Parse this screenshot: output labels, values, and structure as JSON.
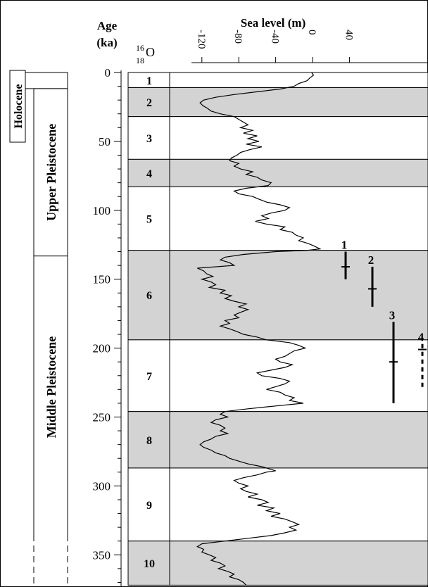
{
  "chart_data": {
    "type": "line",
    "orientation": "vertical-depth",
    "title": "Sea level (m)",
    "age_axis": {
      "label_line1": "Age",
      "label_line2": "(ka)",
      "range": [
        0,
        372
      ],
      "ticks": [
        0,
        50,
        100,
        150,
        200,
        250,
        300,
        350
      ],
      "tick_labels": [
        "0",
        "50",
        "100",
        "150",
        "200",
        "250",
        "300",
        "350"
      ]
    },
    "sea_level_axis": {
      "range": [
        -130,
        40
      ],
      "ticks": [
        -120,
        -80,
        -40,
        0,
        40
      ],
      "tick_labels": [
        "-120",
        "-80",
        "-40",
        "0",
        "40"
      ]
    },
    "oxygen_ratio_label": {
      "top_mass": "16",
      "bottom_mass": "18",
      "element": "O"
    },
    "epochs": [
      {
        "name": "Holocene",
        "from": 0,
        "to": 11.7
      },
      {
        "name": "Upper Pleistocene",
        "from": 11.7,
        "to": 126
      },
      {
        "name": "Middle Pleistocene",
        "from": 126,
        "to": 372
      }
    ],
    "stages": [
      {
        "label": "1",
        "from": 0,
        "to": 11,
        "shaded": false
      },
      {
        "label": "2",
        "from": 11,
        "to": 32,
        "shaded": true
      },
      {
        "label": "3",
        "from": 32,
        "to": 63,
        "shaded": false
      },
      {
        "label": "4",
        "from": 63,
        "to": 83,
        "shaded": true
      },
      {
        "label": "5",
        "from": 83,
        "to": 129,
        "shaded": false
      },
      {
        "label": "6",
        "from": 129,
        "to": 194,
        "shaded": true
      },
      {
        "label": "7",
        "from": 194,
        "to": 246,
        "shaded": false
      },
      {
        "label": "8",
        "from": 246,
        "to": 287,
        "shaded": true
      },
      {
        "label": "9",
        "from": 287,
        "to": 340,
        "shaded": false
      },
      {
        "label": "10",
        "from": 340,
        "to": 372,
        "shaded": true
      }
    ],
    "series": [
      {
        "points": [
          [
            0,
            -1
          ],
          [
            2,
            1
          ],
          [
            4,
            -3
          ],
          [
            6,
            -6
          ],
          [
            8,
            -15
          ],
          [
            10,
            -20
          ],
          [
            12,
            -35
          ],
          [
            14,
            -60
          ],
          [
            16,
            -85
          ],
          [
            18,
            -105
          ],
          [
            20,
            -118
          ],
          [
            22,
            -122
          ],
          [
            24,
            -119
          ],
          [
            26,
            -114
          ],
          [
            28,
            -110
          ],
          [
            30,
            -100
          ],
          [
            32,
            -85
          ],
          [
            34,
            -80
          ],
          [
            36,
            -75
          ],
          [
            38,
            -70
          ],
          [
            40,
            -78
          ],
          [
            42,
            -65
          ],
          [
            44,
            -75
          ],
          [
            46,
            -60
          ],
          [
            48,
            -70
          ],
          [
            50,
            -58
          ],
          [
            52,
            -72
          ],
          [
            54,
            -55
          ],
          [
            56,
            -68
          ],
          [
            58,
            -78
          ],
          [
            60,
            -82
          ],
          [
            62,
            -88
          ],
          [
            64,
            -90
          ],
          [
            66,
            -80
          ],
          [
            68,
            -85
          ],
          [
            70,
            -78
          ],
          [
            72,
            -65
          ],
          [
            74,
            -72
          ],
          [
            76,
            -60
          ],
          [
            78,
            -55
          ],
          [
            80,
            -45
          ],
          [
            82,
            -48
          ],
          [
            84,
            -72
          ],
          [
            86,
            -85
          ],
          [
            88,
            -80
          ],
          [
            90,
            -65
          ],
          [
            92,
            -58
          ],
          [
            94,
            -50
          ],
          [
            96,
            -35
          ],
          [
            98,
            -25
          ],
          [
            100,
            -30
          ],
          [
            102,
            -45
          ],
          [
            104,
            -55
          ],
          [
            106,
            -48
          ],
          [
            108,
            -62
          ],
          [
            110,
            -50
          ],
          [
            112,
            -30
          ],
          [
            114,
            -35
          ],
          [
            116,
            -22
          ],
          [
            118,
            -18
          ],
          [
            120,
            -10
          ],
          [
            122,
            -15
          ],
          [
            124,
            -5
          ],
          [
            126,
            2
          ],
          [
            128,
            8
          ],
          [
            129,
            -5
          ],
          [
            130,
            -40
          ],
          [
            132,
            -75
          ],
          [
            134,
            -95
          ],
          [
            136,
            -100
          ],
          [
            138,
            -90
          ],
          [
            140,
            -85
          ],
          [
            142,
            -125
          ],
          [
            144,
            -118
          ],
          [
            146,
            -115
          ],
          [
            148,
            -108
          ],
          [
            150,
            -120
          ],
          [
            152,
            -110
          ],
          [
            154,
            -105
          ],
          [
            156,
            -112
          ],
          [
            158,
            -95
          ],
          [
            160,
            -100
          ],
          [
            162,
            -88
          ],
          [
            164,
            -95
          ],
          [
            166,
            -85
          ],
          [
            168,
            -72
          ],
          [
            170,
            -80
          ],
          [
            172,
            -70
          ],
          [
            174,
            -78
          ],
          [
            176,
            -85
          ],
          [
            178,
            -80
          ],
          [
            180,
            -95
          ],
          [
            182,
            -90
          ],
          [
            184,
            -100
          ],
          [
            186,
            -90
          ],
          [
            188,
            -82
          ],
          [
            190,
            -75
          ],
          [
            192,
            -60
          ],
          [
            194,
            -50
          ],
          [
            196,
            -25
          ],
          [
            198,
            -15
          ],
          [
            200,
            -8
          ],
          [
            202,
            -20
          ],
          [
            204,
            -25
          ],
          [
            206,
            -30
          ],
          [
            208,
            -40
          ],
          [
            210,
            -35
          ],
          [
            212,
            -22
          ],
          [
            214,
            -30
          ],
          [
            216,
            -45
          ],
          [
            218,
            -60
          ],
          [
            220,
            -55
          ],
          [
            222,
            -35
          ],
          [
            224,
            -25
          ],
          [
            226,
            -30
          ],
          [
            228,
            -40
          ],
          [
            230,
            -50
          ],
          [
            232,
            -35
          ],
          [
            234,
            -30
          ],
          [
            236,
            -20
          ],
          [
            238,
            -25
          ],
          [
            240,
            -10
          ],
          [
            242,
            -40
          ],
          [
            244,
            -70
          ],
          [
            246,
            -95
          ],
          [
            248,
            -100
          ],
          [
            250,
            -92
          ],
          [
            252,
            -105
          ],
          [
            254,
            -110
          ],
          [
            256,
            -100
          ],
          [
            258,
            -95
          ],
          [
            260,
            -100
          ],
          [
            262,
            -92
          ],
          [
            264,
            -105
          ],
          [
            266,
            -110
          ],
          [
            268,
            -118
          ],
          [
            270,
            -122
          ],
          [
            272,
            -118
          ],
          [
            274,
            -110
          ],
          [
            276,
            -105
          ],
          [
            278,
            -95
          ],
          [
            280,
            -90
          ],
          [
            282,
            -80
          ],
          [
            284,
            -70
          ],
          [
            286,
            -55
          ],
          [
            288,
            -45
          ],
          [
            289,
            -40
          ],
          [
            290,
            -50
          ],
          [
            292,
            -60
          ],
          [
            294,
            -75
          ],
          [
            296,
            -85
          ],
          [
            298,
            -80
          ],
          [
            300,
            -70
          ],
          [
            302,
            -78
          ],
          [
            304,
            -72
          ],
          [
            306,
            -60
          ],
          [
            308,
            -70
          ],
          [
            310,
            -55
          ],
          [
            312,
            -48
          ],
          [
            314,
            -60
          ],
          [
            316,
            -42
          ],
          [
            318,
            -50
          ],
          [
            320,
            -35
          ],
          [
            322,
            -45
          ],
          [
            324,
            -30
          ],
          [
            326,
            -22
          ],
          [
            328,
            -15
          ],
          [
            330,
            -25
          ],
          [
            332,
            -18
          ],
          [
            334,
            -30
          ],
          [
            336,
            -45
          ],
          [
            338,
            -70
          ],
          [
            340,
            -95
          ],
          [
            342,
            -120
          ],
          [
            344,
            -125
          ],
          [
            346,
            -118
          ],
          [
            348,
            -120
          ],
          [
            350,
            -112
          ],
          [
            352,
            -105
          ],
          [
            354,
            -110
          ],
          [
            356,
            -100
          ],
          [
            358,
            -95
          ],
          [
            360,
            -102
          ],
          [
            362,
            -92
          ],
          [
            364,
            -85
          ],
          [
            366,
            -90
          ],
          [
            368,
            -80
          ],
          [
            370,
            -75
          ],
          [
            372,
            -72
          ]
        ]
      }
    ],
    "markers": [
      {
        "label": "1",
        "age": 141,
        "from": 130,
        "to": 150,
        "style": "solid"
      },
      {
        "label": "2",
        "age": 157,
        "from": 141,
        "to": 170,
        "style": "solid"
      },
      {
        "label": "3",
        "age": 210,
        "from": 181,
        "to": 240,
        "style": "solid"
      },
      {
        "label": "4",
        "age": 201,
        "from": 197,
        "to": 230,
        "style": "dashed"
      }
    ]
  }
}
